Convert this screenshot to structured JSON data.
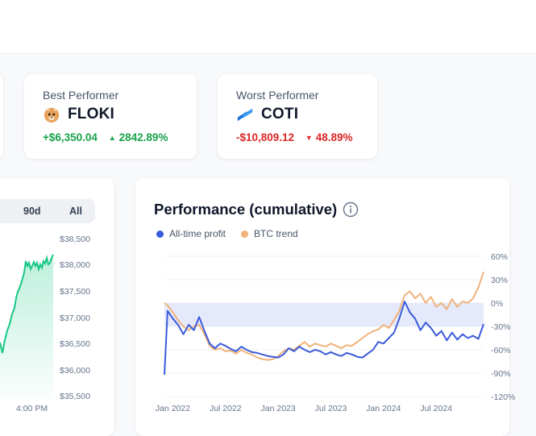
{
  "stats": {
    "best": {
      "label": "Best Performer",
      "coin": "FLOKI",
      "value": "+$6,350.04",
      "percent": "2842.89%",
      "direction": "up"
    },
    "worst": {
      "label": "Worst Performer",
      "coin": "COTI",
      "value": "-$10,809.12",
      "percent": "48.89%",
      "direction": "down"
    }
  },
  "price_chart": {
    "ranges": [
      "90d",
      "All"
    ],
    "y_ticks": [
      "$38,500",
      "$38,000",
      "$37,500",
      "$37,000",
      "$36,500",
      "$36,000",
      "$35,500"
    ],
    "x_tick": "4:00 PM",
    "line_color": "#16c784"
  },
  "chart_data": {
    "type": "line",
    "title": "Performance (cumulative)",
    "y_unit": "%",
    "y_ticks": [
      "60%",
      "30%",
      "0%",
      "-30%",
      "-60%",
      "-90%",
      "-120%"
    ],
    "ylim": [
      -120,
      60
    ],
    "x_ticks": [
      "Jan 2022",
      "Jul 2022",
      "Jan 2023",
      "Jul 2023",
      "Jan 2024",
      "Jul 2024"
    ],
    "series": [
      {
        "name": "All-time profit",
        "color": "#3b5bdb",
        "points": [
          [
            2021.92,
            -92
          ],
          [
            2021.95,
            -10
          ],
          [
            2022.0,
            -20
          ],
          [
            2022.05,
            -28
          ],
          [
            2022.1,
            -40
          ],
          [
            2022.15,
            -28
          ],
          [
            2022.2,
            -35
          ],
          [
            2022.25,
            -18
          ],
          [
            2022.3,
            -36
          ],
          [
            2022.35,
            -52
          ],
          [
            2022.4,
            -58
          ],
          [
            2022.45,
            -52
          ],
          [
            2022.5,
            -55
          ],
          [
            2022.55,
            -59
          ],
          [
            2022.6,
            -62
          ],
          [
            2022.65,
            -56
          ],
          [
            2022.7,
            -60
          ],
          [
            2022.75,
            -63
          ],
          [
            2022.8,
            -64
          ],
          [
            2022.85,
            -66
          ],
          [
            2022.9,
            -68
          ],
          [
            2022.95,
            -69
          ],
          [
            2023.0,
            -70
          ],
          [
            2023.05,
            -66
          ],
          [
            2023.1,
            -58
          ],
          [
            2023.15,
            -62
          ],
          [
            2023.2,
            -56
          ],
          [
            2023.25,
            -60
          ],
          [
            2023.3,
            -63
          ],
          [
            2023.35,
            -60
          ],
          [
            2023.4,
            -62
          ],
          [
            2023.45,
            -66
          ],
          [
            2023.5,
            -63
          ],
          [
            2023.55,
            -66
          ],
          [
            2023.6,
            -68
          ],
          [
            2023.65,
            -64
          ],
          [
            2023.7,
            -66
          ],
          [
            2023.75,
            -69
          ],
          [
            2023.8,
            -70
          ],
          [
            2023.85,
            -65
          ],
          [
            2023.9,
            -60
          ],
          [
            2023.95,
            -50
          ],
          [
            2024.0,
            -52
          ],
          [
            2024.05,
            -45
          ],
          [
            2024.1,
            -38
          ],
          [
            2024.15,
            -20
          ],
          [
            2024.2,
            2
          ],
          [
            2024.25,
            -12
          ],
          [
            2024.3,
            -20
          ],
          [
            2024.35,
            -35
          ],
          [
            2024.4,
            -25
          ],
          [
            2024.45,
            -32
          ],
          [
            2024.5,
            -42
          ],
          [
            2024.55,
            -36
          ],
          [
            2024.6,
            -48
          ],
          [
            2024.65,
            -38
          ],
          [
            2024.7,
            -47
          ],
          [
            2024.75,
            -40
          ],
          [
            2024.8,
            -45
          ],
          [
            2024.85,
            -42
          ],
          [
            2024.9,
            -46
          ],
          [
            2024.95,
            -27
          ]
        ]
      },
      {
        "name": "BTC trend",
        "color": "#f0b27a",
        "points": [
          [
            2021.92,
            0
          ],
          [
            2021.95,
            -3
          ],
          [
            2022.0,
            -12
          ],
          [
            2022.05,
            -22
          ],
          [
            2022.1,
            -30
          ],
          [
            2022.15,
            -35
          ],
          [
            2022.2,
            -30
          ],
          [
            2022.25,
            -28
          ],
          [
            2022.3,
            -40
          ],
          [
            2022.35,
            -55
          ],
          [
            2022.4,
            -60
          ],
          [
            2022.45,
            -58
          ],
          [
            2022.5,
            -62
          ],
          [
            2022.55,
            -61
          ],
          [
            2022.6,
            -65
          ],
          [
            2022.65,
            -60
          ],
          [
            2022.7,
            -64
          ],
          [
            2022.75,
            -66
          ],
          [
            2022.8,
            -70
          ],
          [
            2022.85,
            -72
          ],
          [
            2022.9,
            -73
          ],
          [
            2022.95,
            -72
          ],
          [
            2023.0,
            -68
          ],
          [
            2023.05,
            -62
          ],
          [
            2023.1,
            -58
          ],
          [
            2023.15,
            -60
          ],
          [
            2023.2,
            -55
          ],
          [
            2023.25,
            -50
          ],
          [
            2023.3,
            -56
          ],
          [
            2023.35,
            -52
          ],
          [
            2023.4,
            -54
          ],
          [
            2023.45,
            -56
          ],
          [
            2023.5,
            -52
          ],
          [
            2023.55,
            -55
          ],
          [
            2023.6,
            -58
          ],
          [
            2023.65,
            -54
          ],
          [
            2023.7,
            -55
          ],
          [
            2023.75,
            -50
          ],
          [
            2023.8,
            -45
          ],
          [
            2023.85,
            -40
          ],
          [
            2023.9,
            -36
          ],
          [
            2023.95,
            -34
          ],
          [
            2024.0,
            -28
          ],
          [
            2024.05,
            -32
          ],
          [
            2024.1,
            -22
          ],
          [
            2024.15,
            -10
          ],
          [
            2024.2,
            10
          ],
          [
            2024.25,
            15
          ],
          [
            2024.3,
            6
          ],
          [
            2024.35,
            12
          ],
          [
            2024.4,
            0
          ],
          [
            2024.45,
            8
          ],
          [
            2024.5,
            -5
          ],
          [
            2024.55,
            0
          ],
          [
            2024.6,
            -8
          ],
          [
            2024.65,
            5
          ],
          [
            2024.7,
            -5
          ],
          [
            2024.75,
            2
          ],
          [
            2024.8,
            0
          ],
          [
            2024.85,
            6
          ],
          [
            2024.9,
            20
          ],
          [
            2024.95,
            40
          ]
        ]
      }
    ],
    "xlim": [
      2021.92,
      2024.95
    ],
    "x_tick_values": [
      2022.0,
      2022.5,
      2023.0,
      2023.5,
      2024.0,
      2024.5
    ]
  }
}
